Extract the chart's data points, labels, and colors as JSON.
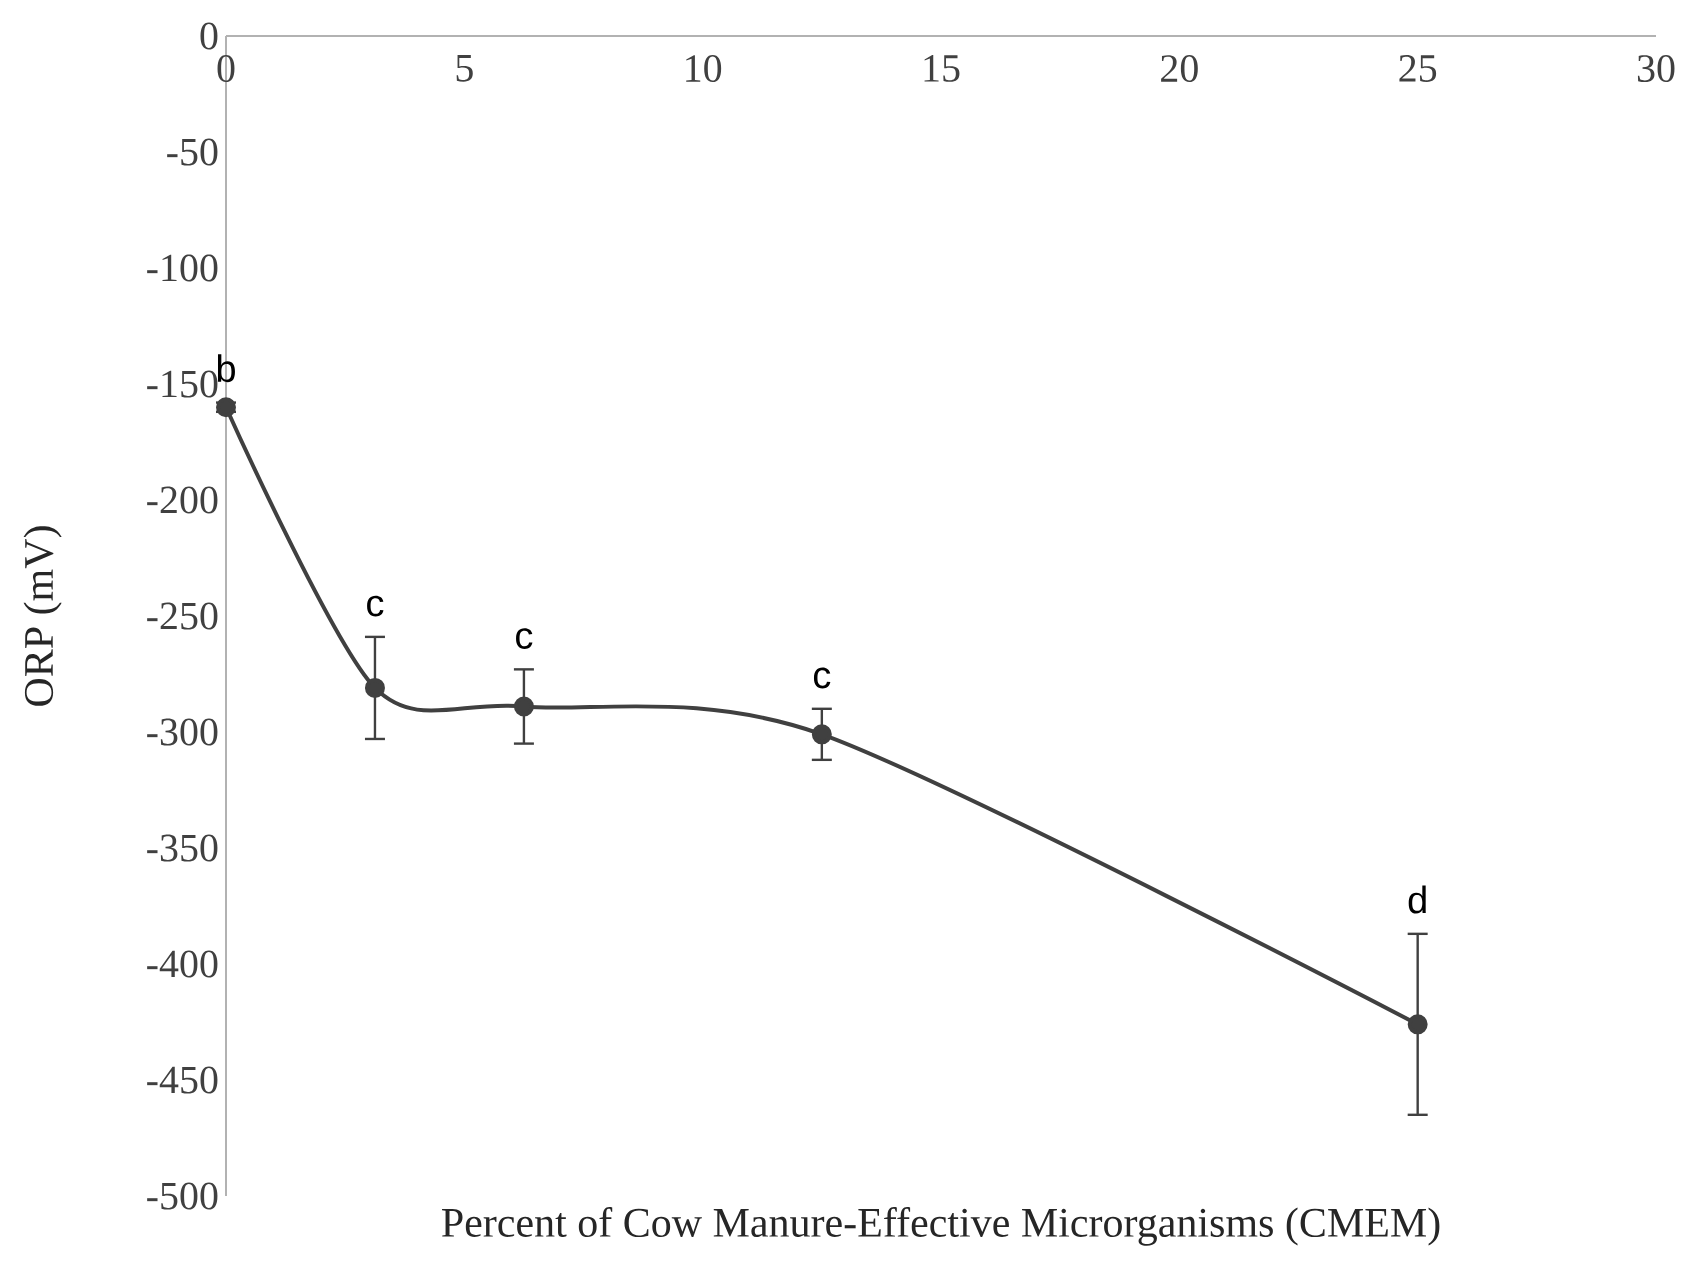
{
  "chart_data": {
    "type": "line",
    "xlabel": "Percent of  Cow Manure-Effective Microrganisms  (CMEM)",
    "ylabel": "ORP (mV)",
    "x": [
      0,
      3.125,
      6.25,
      12.5,
      25
    ],
    "series": [
      {
        "color": "#404040",
        "values": [
          -160,
          -281,
          -289,
          -301,
          -426
        ],
        "errors": [
          2,
          22,
          16,
          11,
          39
        ]
      }
    ],
    "xlim": [
      0,
      30
    ],
    "xticks": [
      0,
      5,
      10,
      15,
      20,
      25,
      30
    ],
    "ylim": [
      -500,
      0
    ],
    "yticks": [
      -500,
      -450,
      -400,
      -350,
      -300,
      -250,
      -200,
      -150,
      -100,
      -50,
      0
    ],
    "marker": "circle",
    "line_style": "solid",
    "grid": false,
    "annotations": [
      {
        "text": "b",
        "x": 0,
        "y": -160
      },
      {
        "text": "c",
        "x": 3.125,
        "y": -281
      },
      {
        "text": "c",
        "x": 6.25,
        "y": -289
      },
      {
        "text": "c",
        "x": 12.5,
        "y": -301
      },
      {
        "text": "d",
        "x": 25,
        "y": -426
      }
    ]
  }
}
